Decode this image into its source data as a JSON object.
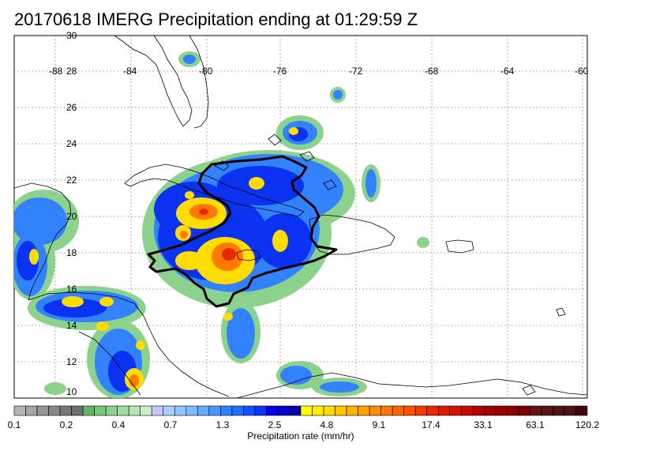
{
  "title": "20170618 IMERG Precipitation ending at 01:29:59 Z",
  "lat_labels": [
    "30",
    "28",
    "26",
    "24",
    "22",
    "20",
    "18",
    "16",
    "14",
    "12",
    "10"
  ],
  "lon_labels": [
    "-88",
    "-84",
    "-80",
    "-76",
    "-72",
    "-68",
    "-64",
    "-60"
  ],
  "colorbar": {
    "title": "Precipitation rate (mm/hr)",
    "tick_labels": [
      "0.1",
      "0.2",
      "0.4",
      "0.7",
      "1.3",
      "2.5",
      "4.8",
      "9.1",
      "17.4",
      "33.1",
      "63.1",
      "120.2"
    ],
    "colors": [
      "#b4b4b4",
      "#a5a5a5",
      "#969696",
      "#878787",
      "#787878",
      "#6e6e6e",
      "#64b464",
      "#78c878",
      "#8cd28c",
      "#a0dca0",
      "#b4e6b4",
      "#c8f0c8",
      "#c8c8ff",
      "#afcdff",
      "#96c3ff",
      "#7dbaff",
      "#64aaff",
      "#4b96ff",
      "#3282ff",
      "#1e6eff",
      "#1450ff",
      "#0a32f0",
      "#0000e6",
      "#0000c8",
      "#0000aa",
      "#ffff00",
      "#ffec00",
      "#ffdc00",
      "#ffc800",
      "#ffb400",
      "#ffa000",
      "#ff8c00",
      "#ff7800",
      "#ff6400",
      "#ff5000",
      "#f03c00",
      "#e62800",
      "#dc1e00",
      "#d21400",
      "#c80a00",
      "#b40000",
      "#a00000",
      "#960000",
      "#8c0000",
      "#780000",
      "#641414",
      "#5a1414",
      "#501414",
      "#461414",
      "#3c0a0a"
    ]
  },
  "colors": {
    "land_outline": "#000000",
    "watch_outline": "#000000",
    "grid": "#7a7a7a"
  }
}
